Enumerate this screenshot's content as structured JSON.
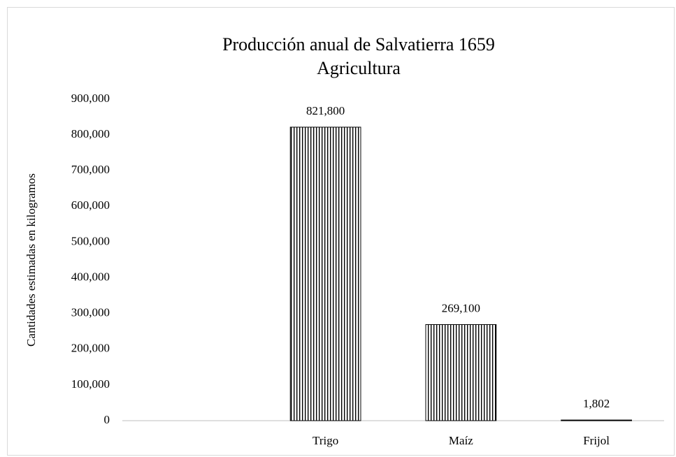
{
  "chart_data": {
    "type": "bar",
    "title": "Producción anual de Salvatierra 1659",
    "subtitle": "Agricultura",
    "y_label": "Cantidades estimadas en kilogramos",
    "categories": [
      null,
      "Trigo",
      "Maíz",
      "Frijol"
    ],
    "values": [
      null,
      821800,
      269100,
      1802
    ],
    "value_labels": [
      null,
      "821,800",
      "269,100",
      "1,802"
    ],
    "color": "#000000",
    "ylim": [
      0,
      900000
    ],
    "yticks": [
      0,
      {
        "value": 100000,
        "label": "100,000"
      },
      {
        "value": 200000,
        "label": "200,000"
      },
      {
        "value": 300000,
        "label": "300,000"
      },
      {
        "value": 400000,
        "label": "400,000"
      },
      {
        "value": 500000,
        "label": "500,000"
      },
      {
        "value": 600000,
        "label": "600,000"
      },
      {
        "value": 700000,
        "label": "700,000"
      },
      {
        "value": 800000,
        "label": "800,000"
      },
      {
        "value": 900000,
        "label": "900,000"
      }
    ],
    "grid": false
  }
}
